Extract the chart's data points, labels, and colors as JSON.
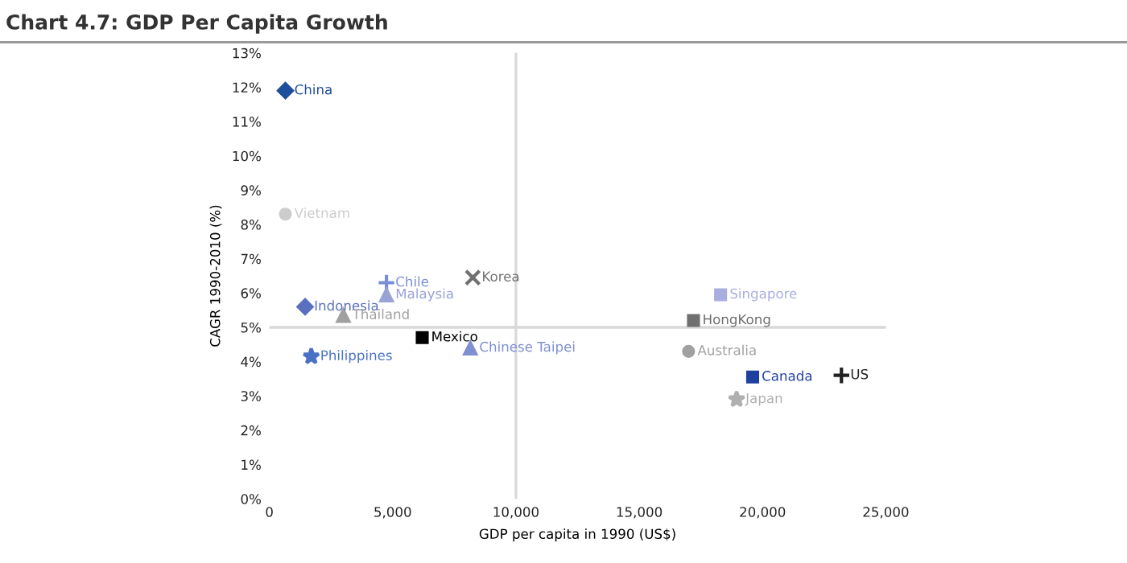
{
  "chart_data": {
    "type": "scatter",
    "title": "Chart 4.7: GDP Per Capita Growth",
    "xlabel": "GDP per capita in 1990 (US$)",
    "ylabel": "CAGR 1990-2010 (%)",
    "xlim": [
      0,
      25000
    ],
    "xticks": [
      {
        "value": 0,
        "label": "0"
      },
      {
        "value": 5000,
        "label": "5,000"
      },
      {
        "value": 10000,
        "label": "10,000"
      },
      {
        "value": 15000,
        "label": "15,000"
      },
      {
        "value": 20000,
        "label": "20,000"
      },
      {
        "value": 25000,
        "label": "25,000"
      }
    ],
    "ylim": [
      0,
      13
    ],
    "yticks": [
      {
        "value": 0,
        "label": "0%"
      },
      {
        "value": 1,
        "label": "1%"
      },
      {
        "value": 2,
        "label": "2%"
      },
      {
        "value": 3,
        "label": "3%"
      },
      {
        "value": 4,
        "label": "4%"
      },
      {
        "value": 5,
        "label": "5%"
      },
      {
        "value": 6,
        "label": "6%"
      },
      {
        "value": 7,
        "label": "7%"
      },
      {
        "value": 8,
        "label": "8%"
      },
      {
        "value": 9,
        "label": "9%"
      },
      {
        "value": 10,
        "label": "10%"
      },
      {
        "value": 11,
        "label": "11%"
      },
      {
        "value": 12,
        "label": "12%"
      },
      {
        "value": 13,
        "label": "13%"
      }
    ],
    "ref_lines": [
      {
        "axis": "x",
        "value": 10000,
        "color": "#d9d9d9"
      },
      {
        "axis": "y",
        "value": 5,
        "color": "#d9d9d9"
      }
    ],
    "grid": false,
    "legend": false,
    "series": [
      {
        "name": "China",
        "color": "#1f4e9c",
        "marker": "diamond",
        "x": [
          650
        ],
        "values": [
          11.9
        ]
      },
      {
        "name": "Vietnam",
        "color": "#cccccc",
        "marker": "circle",
        "x": [
          650
        ],
        "values": [
          8.3
        ]
      },
      {
        "name": "Indonesia",
        "color": "#5b6fbf",
        "marker": "diamond",
        "x": [
          1450
        ],
        "values": [
          5.6
        ]
      },
      {
        "name": "Thailand",
        "color": "#a0a0a0",
        "marker": "triangle",
        "x": [
          3000
        ],
        "values": [
          5.35
        ]
      },
      {
        "name": "Chile",
        "color": "#7b8fd6",
        "marker": "cross",
        "x": [
          4750
        ],
        "values": [
          6.3
        ]
      },
      {
        "name": "Malaysia",
        "color": "#9aa3d6",
        "marker": "triangle",
        "x": [
          4750
        ],
        "values": [
          5.95
        ]
      },
      {
        "name": "Philippines",
        "color": "#4a72c4",
        "marker": "star",
        "x": [
          1700
        ],
        "values": [
          4.15
        ]
      },
      {
        "name": "Korea",
        "color": "#707070",
        "marker": "x",
        "x": [
          8250
        ],
        "values": [
          6.45
        ]
      },
      {
        "name": "Mexico",
        "color": "#000000",
        "marker": "square",
        "x": [
          6200
        ],
        "values": [
          4.7
        ]
      },
      {
        "name": "Chinese Taipei",
        "color": "#7f8fd0",
        "marker": "triangle",
        "x": [
          8150
        ],
        "values": [
          4.4
        ]
      },
      {
        "name": "Singapore",
        "color": "#a9aee0",
        "marker": "square",
        "x": [
          18300
        ],
        "values": [
          5.95
        ]
      },
      {
        "name": "HongKong",
        "color": "#707070",
        "marker": "square",
        "x": [
          17200
        ],
        "values": [
          5.2
        ]
      },
      {
        "name": "Australia",
        "color": "#a0a0a0",
        "marker": "circle",
        "x": [
          17000
        ],
        "values": [
          4.3
        ]
      },
      {
        "name": "Canada",
        "color": "#2040a0",
        "marker": "square",
        "x": [
          19600
        ],
        "values": [
          3.55
        ]
      },
      {
        "name": "US",
        "color": "#222222",
        "marker": "cross",
        "x": [
          23200
        ],
        "values": [
          3.6
        ]
      },
      {
        "name": "Japan",
        "color": "#b0b0b0",
        "marker": "star",
        "x": [
          18950
        ],
        "values": [
          2.9
        ]
      }
    ]
  }
}
